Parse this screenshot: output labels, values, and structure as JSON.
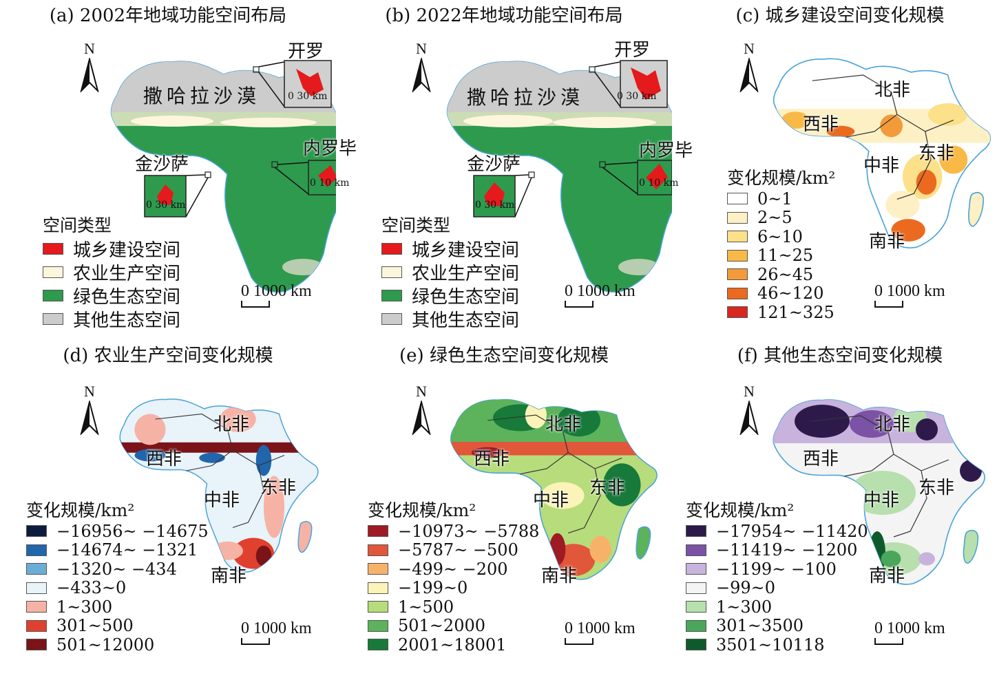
{
  "panels": [
    {
      "id": "a",
      "title": "(a) 2002年地域功能空间布局",
      "north": "N",
      "desert": "撒哈拉沙漠",
      "cities": [
        "开罗",
        "金沙萨",
        "内罗毕"
      ],
      "inset_scales": [
        "0  30 km",
        "0  30 km",
        "0 10 km"
      ],
      "legend_title": "空间类型",
      "legend": [
        {
          "label": "城乡建设空间",
          "color": "#e41a1c"
        },
        {
          "label": "农业生产空间",
          "color": "#fdf6dc"
        },
        {
          "label": "绿色生态空间",
          "color": "#2e9a4e"
        },
        {
          "label": "其他生态空间",
          "color": "#cccccc"
        }
      ],
      "scale": "0 1000 km"
    },
    {
      "id": "b",
      "title": "(b) 2022年地域功能空间布局",
      "north": "N",
      "desert": "撒哈拉沙漠",
      "cities": [
        "开罗",
        "金沙萨",
        "内罗毕"
      ],
      "inset_scales": [
        "0  30 km",
        "0  30 km",
        "0 10 km"
      ],
      "legend_title": "空间类型",
      "legend": [
        {
          "label": "城乡建设空间",
          "color": "#e41a1c"
        },
        {
          "label": "农业生产空间",
          "color": "#fdf6dc"
        },
        {
          "label": "绿色生态空间",
          "color": "#2e9a4e"
        },
        {
          "label": "其他生态空间",
          "color": "#cccccc"
        }
      ],
      "scale": "0 1000 km"
    },
    {
      "id": "c",
      "title": "(c) 城乡建设空间变化规模",
      "north": "N",
      "regions": [
        "北非",
        "西非",
        "中非",
        "东非",
        "南非"
      ],
      "legend_title": "变化规模/km²",
      "legend": [
        {
          "label": "0~1",
          "color": "#ffffff"
        },
        {
          "label": "2~5",
          "color": "#fdf0c4"
        },
        {
          "label": "6~10",
          "color": "#fce08a"
        },
        {
          "label": "11~25",
          "color": "#f9b947"
        },
        {
          "label": "26~45",
          "color": "#f39a3a"
        },
        {
          "label": "46~120",
          "color": "#eb6a1f"
        },
        {
          "label": "121~325",
          "color": "#d7271e"
        }
      ],
      "scale": "0 1000 km"
    },
    {
      "id": "d",
      "title": "(d) 农业生产空间变化规模",
      "north": "N",
      "regions": [
        "北非",
        "西非",
        "中非",
        "东非",
        "南非"
      ],
      "legend_title": "变化规模/km²",
      "legend": [
        {
          "label": "−16956~ −14675",
          "color": "#0d1b3e"
        },
        {
          "label": "−14674~ −1321",
          "color": "#2166ac"
        },
        {
          "label": "−1320~ −434",
          "color": "#6aaed6"
        },
        {
          "label": "−433~0",
          "color": "#e8f3fa"
        },
        {
          "label": "1~300",
          "color": "#f6b3a5"
        },
        {
          "label": "301~500",
          "color": "#e0402e"
        },
        {
          "label": "501~12000",
          "color": "#7a1418"
        }
      ],
      "scale": "0 1000 km"
    },
    {
      "id": "e",
      "title": "(e) 绿色生态空间变化规模",
      "north": "N",
      "regions": [
        "北非",
        "西非",
        "中非",
        "东非",
        "南非"
      ],
      "legend_title": "变化规模/km²",
      "legend": [
        {
          "label": "−10973~ −5788",
          "color": "#9e1b24"
        },
        {
          "label": "−5787~ −500",
          "color": "#e0573a"
        },
        {
          "label": "−499~ −200",
          "color": "#f7b26a"
        },
        {
          "label": "−199~0",
          "color": "#fbf3b8"
        },
        {
          "label": "1~500",
          "color": "#b7dc7c"
        },
        {
          "label": "501~2000",
          "color": "#5db35c"
        },
        {
          "label": "2001~18001",
          "color": "#177a3a"
        }
      ],
      "scale": "0 1000 km"
    },
    {
      "id": "f",
      "title": "(f) 其他生态空间变化规模",
      "north": "N",
      "regions": [
        "北非",
        "西非",
        "中非",
        "东非",
        "南非"
      ],
      "legend_title": "变化规模/km²",
      "legend": [
        {
          "label": "−17954~ −11420",
          "color": "#2d1a4b"
        },
        {
          "label": "−11419~ −1200",
          "color": "#7b52a6"
        },
        {
          "label": "−1199~ −100",
          "color": "#c7b3dc"
        },
        {
          "label": "−99~0",
          "color": "#f4f4f4"
        },
        {
          "label": "1~300",
          "color": "#b8dfae"
        },
        {
          "label": "301~3500",
          "color": "#4aa65a"
        },
        {
          "label": "3501~10118",
          "color": "#0f5a2a"
        }
      ],
      "scale": "0 1000 km"
    }
  ]
}
